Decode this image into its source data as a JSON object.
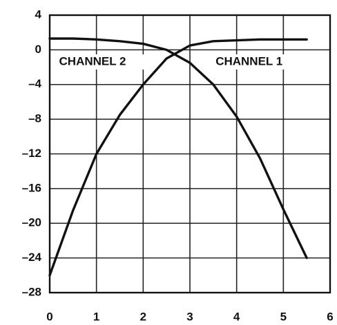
{
  "chart_data": {
    "type": "line",
    "x": [
      0,
      0.5,
      1,
      1.5,
      2,
      2.5,
      3,
      3.5,
      4,
      4.5,
      5,
      5.5
    ],
    "series": [
      {
        "name": "CHANNEL 1",
        "color": "#111111",
        "values": [
          -26,
          -18.5,
          -12,
          -7.5,
          -4,
          -1,
          0.5,
          1,
          1.1,
          1.2,
          1.2,
          1.2
        ]
      },
      {
        "name": "CHANNEL 2",
        "color": "#111111",
        "values": [
          1.3,
          1.3,
          1.2,
          1,
          0.7,
          0,
          -1.5,
          -4,
          -7.7,
          -12.5,
          -18.4,
          -24
        ]
      }
    ],
    "xlim": [
      0,
      6
    ],
    "xticks": [
      0,
      1,
      2,
      3,
      4,
      5,
      6
    ],
    "ylim": [
      -28,
      4
    ],
    "yticks": [
      {
        "value": -28,
        "label": "–28"
      },
      {
        "value": -24,
        "label": "–24"
      },
      {
        "value": -20,
        "label": "–20"
      },
      {
        "value": -16,
        "label": "–16"
      },
      {
        "value": -12,
        "label": "–12"
      },
      {
        "value": -8,
        "label": "–8"
      },
      {
        "value": -4,
        "label": "–4"
      },
      0,
      4
    ],
    "grid": true
  }
}
